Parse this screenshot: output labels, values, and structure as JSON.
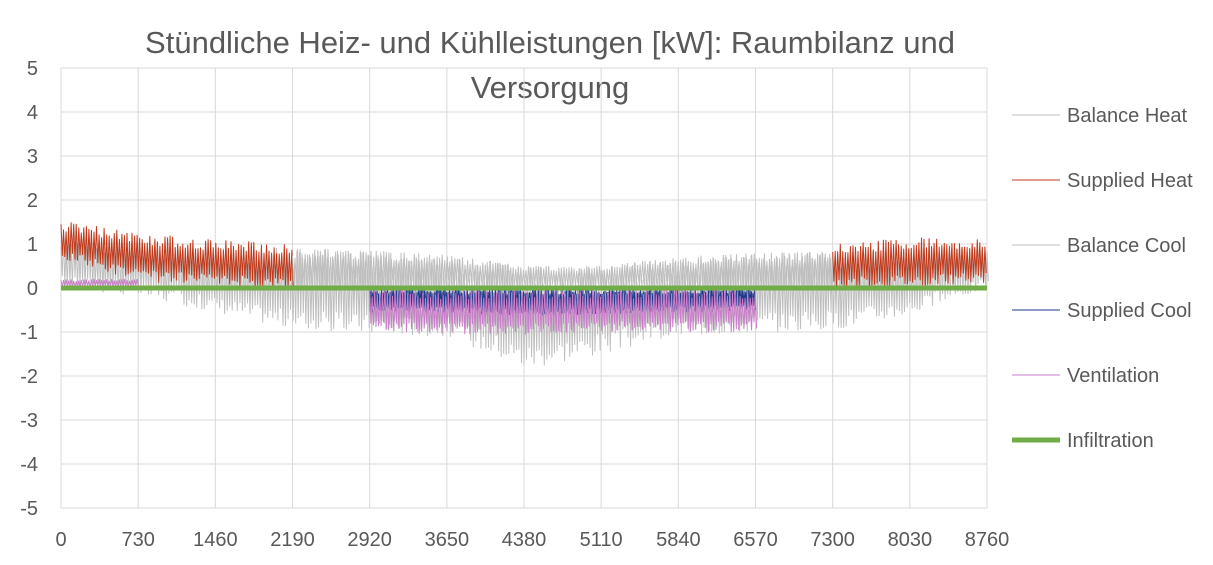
{
  "chart_data": {
    "type": "line",
    "title_line1": "Stündliche Heiz- und Kühlleistungen [kW]: Raumbilanz und",
    "title_line2": "Versorgung",
    "xlim": [
      0,
      8760
    ],
    "ylim": [
      -5,
      5
    ],
    "x_ticks": [
      "0",
      "730",
      "1460",
      "2190",
      "2920",
      "3650",
      "4380",
      "5110",
      "5840",
      "6570",
      "7300",
      "8030",
      "8760"
    ],
    "y_ticks": [
      "5",
      "4",
      "3",
      "2",
      "1",
      "0",
      "-1",
      "-2",
      "-3",
      "-4",
      "-5"
    ],
    "grid": true,
    "legend_position": "right",
    "series": [
      {
        "name": "Balance Heat",
        "color": "#bfbfbf",
        "envelope_x": [
          0,
          730,
          1460,
          2190,
          2920,
          3650,
          4380,
          5110,
          5840,
          6570,
          7300,
          8030,
          8760
        ],
        "envelope_max": [
          1.2,
          1.0,
          0.9,
          0.9,
          0.85,
          0.75,
          0.5,
          0.5,
          0.7,
          0.8,
          0.85,
          0.9,
          1.0
        ],
        "envelope_min": [
          0.0,
          -0.2,
          -0.55,
          -0.95,
          -1.05,
          -1.1,
          -1.85,
          -1.5,
          -1.1,
          -1.0,
          -0.95,
          -0.6,
          0.0
        ]
      },
      {
        "name": "Supplied Heat",
        "color": "#c0391b",
        "envelope_x": [
          0,
          100,
          730,
          1460,
          2190,
          7300,
          8030,
          8760
        ],
        "envelope_max": [
          1.45,
          1.5,
          1.25,
          1.1,
          1.0,
          1.0,
          1.15,
          1.1
        ],
        "envelope_min": [
          0.55,
          0.6,
          0.15,
          0.05,
          0.0,
          0.0,
          0.05,
          0.1
        ],
        "active_ranges": [
          [
            0,
            2190
          ],
          [
            7300,
            8760
          ]
        ]
      },
      {
        "name": "Balance Cool",
        "color": "#bfbfbf",
        "envelope_x": [
          2190,
          2920,
          3650,
          4380,
          5110,
          5840,
          6570,
          7300
        ],
        "envelope_max": [
          0.9,
          0.85,
          0.75,
          0.5,
          0.5,
          0.7,
          0.8,
          0.85
        ],
        "envelope_min": [
          0.0,
          0.0,
          0.0,
          0.0,
          0.0,
          0.0,
          0.0,
          0.0
        ]
      },
      {
        "name": "Supplied Cool",
        "color": "#1f3b8c",
        "envelope_x": [
          2920,
          3650,
          4380,
          5110,
          5840,
          6570
        ],
        "envelope_max": [
          0.0,
          0.0,
          0.0,
          0.0,
          0.0,
          0.0
        ],
        "envelope_min": [
          -0.55,
          -0.55,
          -0.65,
          -0.6,
          -0.55,
          -0.5
        ],
        "active_ranges": [
          [
            2920,
            6570
          ]
        ]
      },
      {
        "name": "Ventilation",
        "color": "#c97ec9",
        "envelope_x": [
          0,
          730,
          731,
          2920,
          3650,
          4380,
          5110,
          5840,
          6570
        ],
        "envelope_max": [
          0.2,
          0.2,
          0.0,
          0.0,
          0.0,
          0.0,
          0.0,
          0.0,
          0.0
        ],
        "envelope_min": [
          0.0,
          0.0,
          0.0,
          -1.0,
          -1.05,
          -1.05,
          -1.0,
          -1.0,
          -1.0
        ],
        "active_ranges": [
          [
            0,
            730
          ],
          [
            2920,
            6570
          ]
        ]
      },
      {
        "name": "Infiltration",
        "color": "#70ad47",
        "values_constant": 0
      }
    ]
  }
}
